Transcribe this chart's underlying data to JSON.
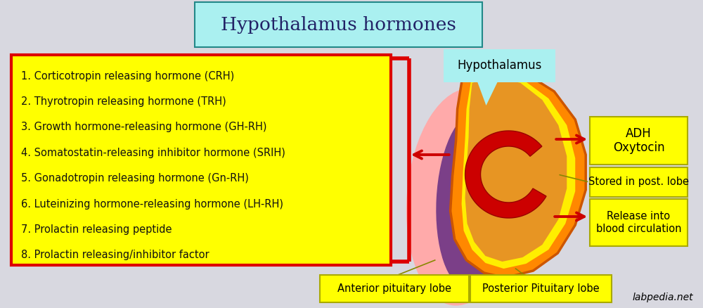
{
  "title": "Hypothalamus hormones",
  "title_bg": "#aaf0f0",
  "title_border": "#228888",
  "bg_color": "#d8d8e0",
  "list_items": [
    "1. Corticotropin releasing hormone (CRH)",
    "2. Thyrotropin releasing hormone (TRH)",
    "3. Growth hormone-releasing hormone (GH-RH)",
    "4. Somatostatin-releasing inhibitor hormone (SRIH)",
    "5. Gonadotropin releasing hormone (Gn-RH)",
    "6. Luteinizing hormone-releasing hormone (LH-RH)",
    "7. Prolactin releasing peptide",
    "8. Prolactin releasing/inhibitor factor"
  ],
  "list_box_color": "#ffff00",
  "list_border_color": "#dd0000",
  "label_bg": "#ffff00",
  "label_border": "#aaaa00",
  "hypothalamus_label": "Hypothalamus",
  "hypothalamus_label_bg": "#aaf0f0",
  "adh_label": "ADH\nOxytocin",
  "stored_label": "Stored in post. lobe",
  "release_label": "Release into\nblood circulation",
  "anterior_label": "Anterior pituitary lobe",
  "posterior_label": "Posterior Pituitary lobe",
  "watermark": "labpedia.net",
  "arrow_color": "#cc0000",
  "col_orange": "#ff8800",
  "col_dark_orange": "#cc5500",
  "col_yellow": "#ffee00",
  "col_purple": "#7b3f88",
  "col_pink": "#ffaaaa",
  "col_red": "#cc0000",
  "col_red_dark": "#990000"
}
